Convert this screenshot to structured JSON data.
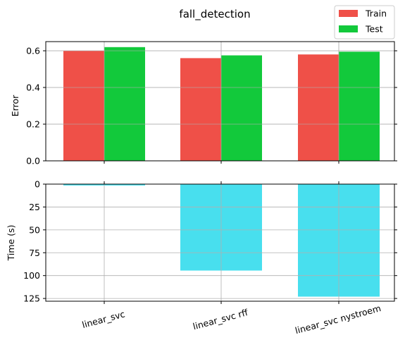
{
  "chart_data": [
    {
      "type": "bar",
      "title": "fall_detection",
      "ylabel": "Error",
      "categories": [
        "linear_svc",
        "linear_svc rff",
        "linear_svc nystroem"
      ],
      "ylim": [
        0,
        0.65
      ],
      "yticks": [
        "0.0",
        "0.2",
        "0.4",
        "0.6"
      ],
      "ytick_values": [
        0,
        0.2,
        0.4,
        0.6
      ],
      "grid": true,
      "legend": "top-right",
      "series": [
        {
          "name": "Train",
          "color": "#ef5048",
          "values": [
            0.6,
            0.56,
            0.58
          ]
        },
        {
          "name": "Test",
          "color": "#12c93b",
          "values": [
            0.62,
            0.575,
            0.595
          ]
        }
      ]
    },
    {
      "type": "bar",
      "ylabel": "Time (s)",
      "categories": [
        "linear_svc",
        "linear_svc rff",
        "linear_svc nystroem"
      ],
      "inverted_y": true,
      "ylim": [
        0,
        128
      ],
      "yticks": [
        "0",
        "25",
        "50",
        "75",
        "100",
        "125"
      ],
      "ytick_values": [
        0,
        25,
        50,
        75,
        100,
        125
      ],
      "grid": true,
      "series": [
        {
          "color": "#48dfee",
          "values": [
            1.5,
            94.5,
            123
          ]
        }
      ]
    }
  ]
}
